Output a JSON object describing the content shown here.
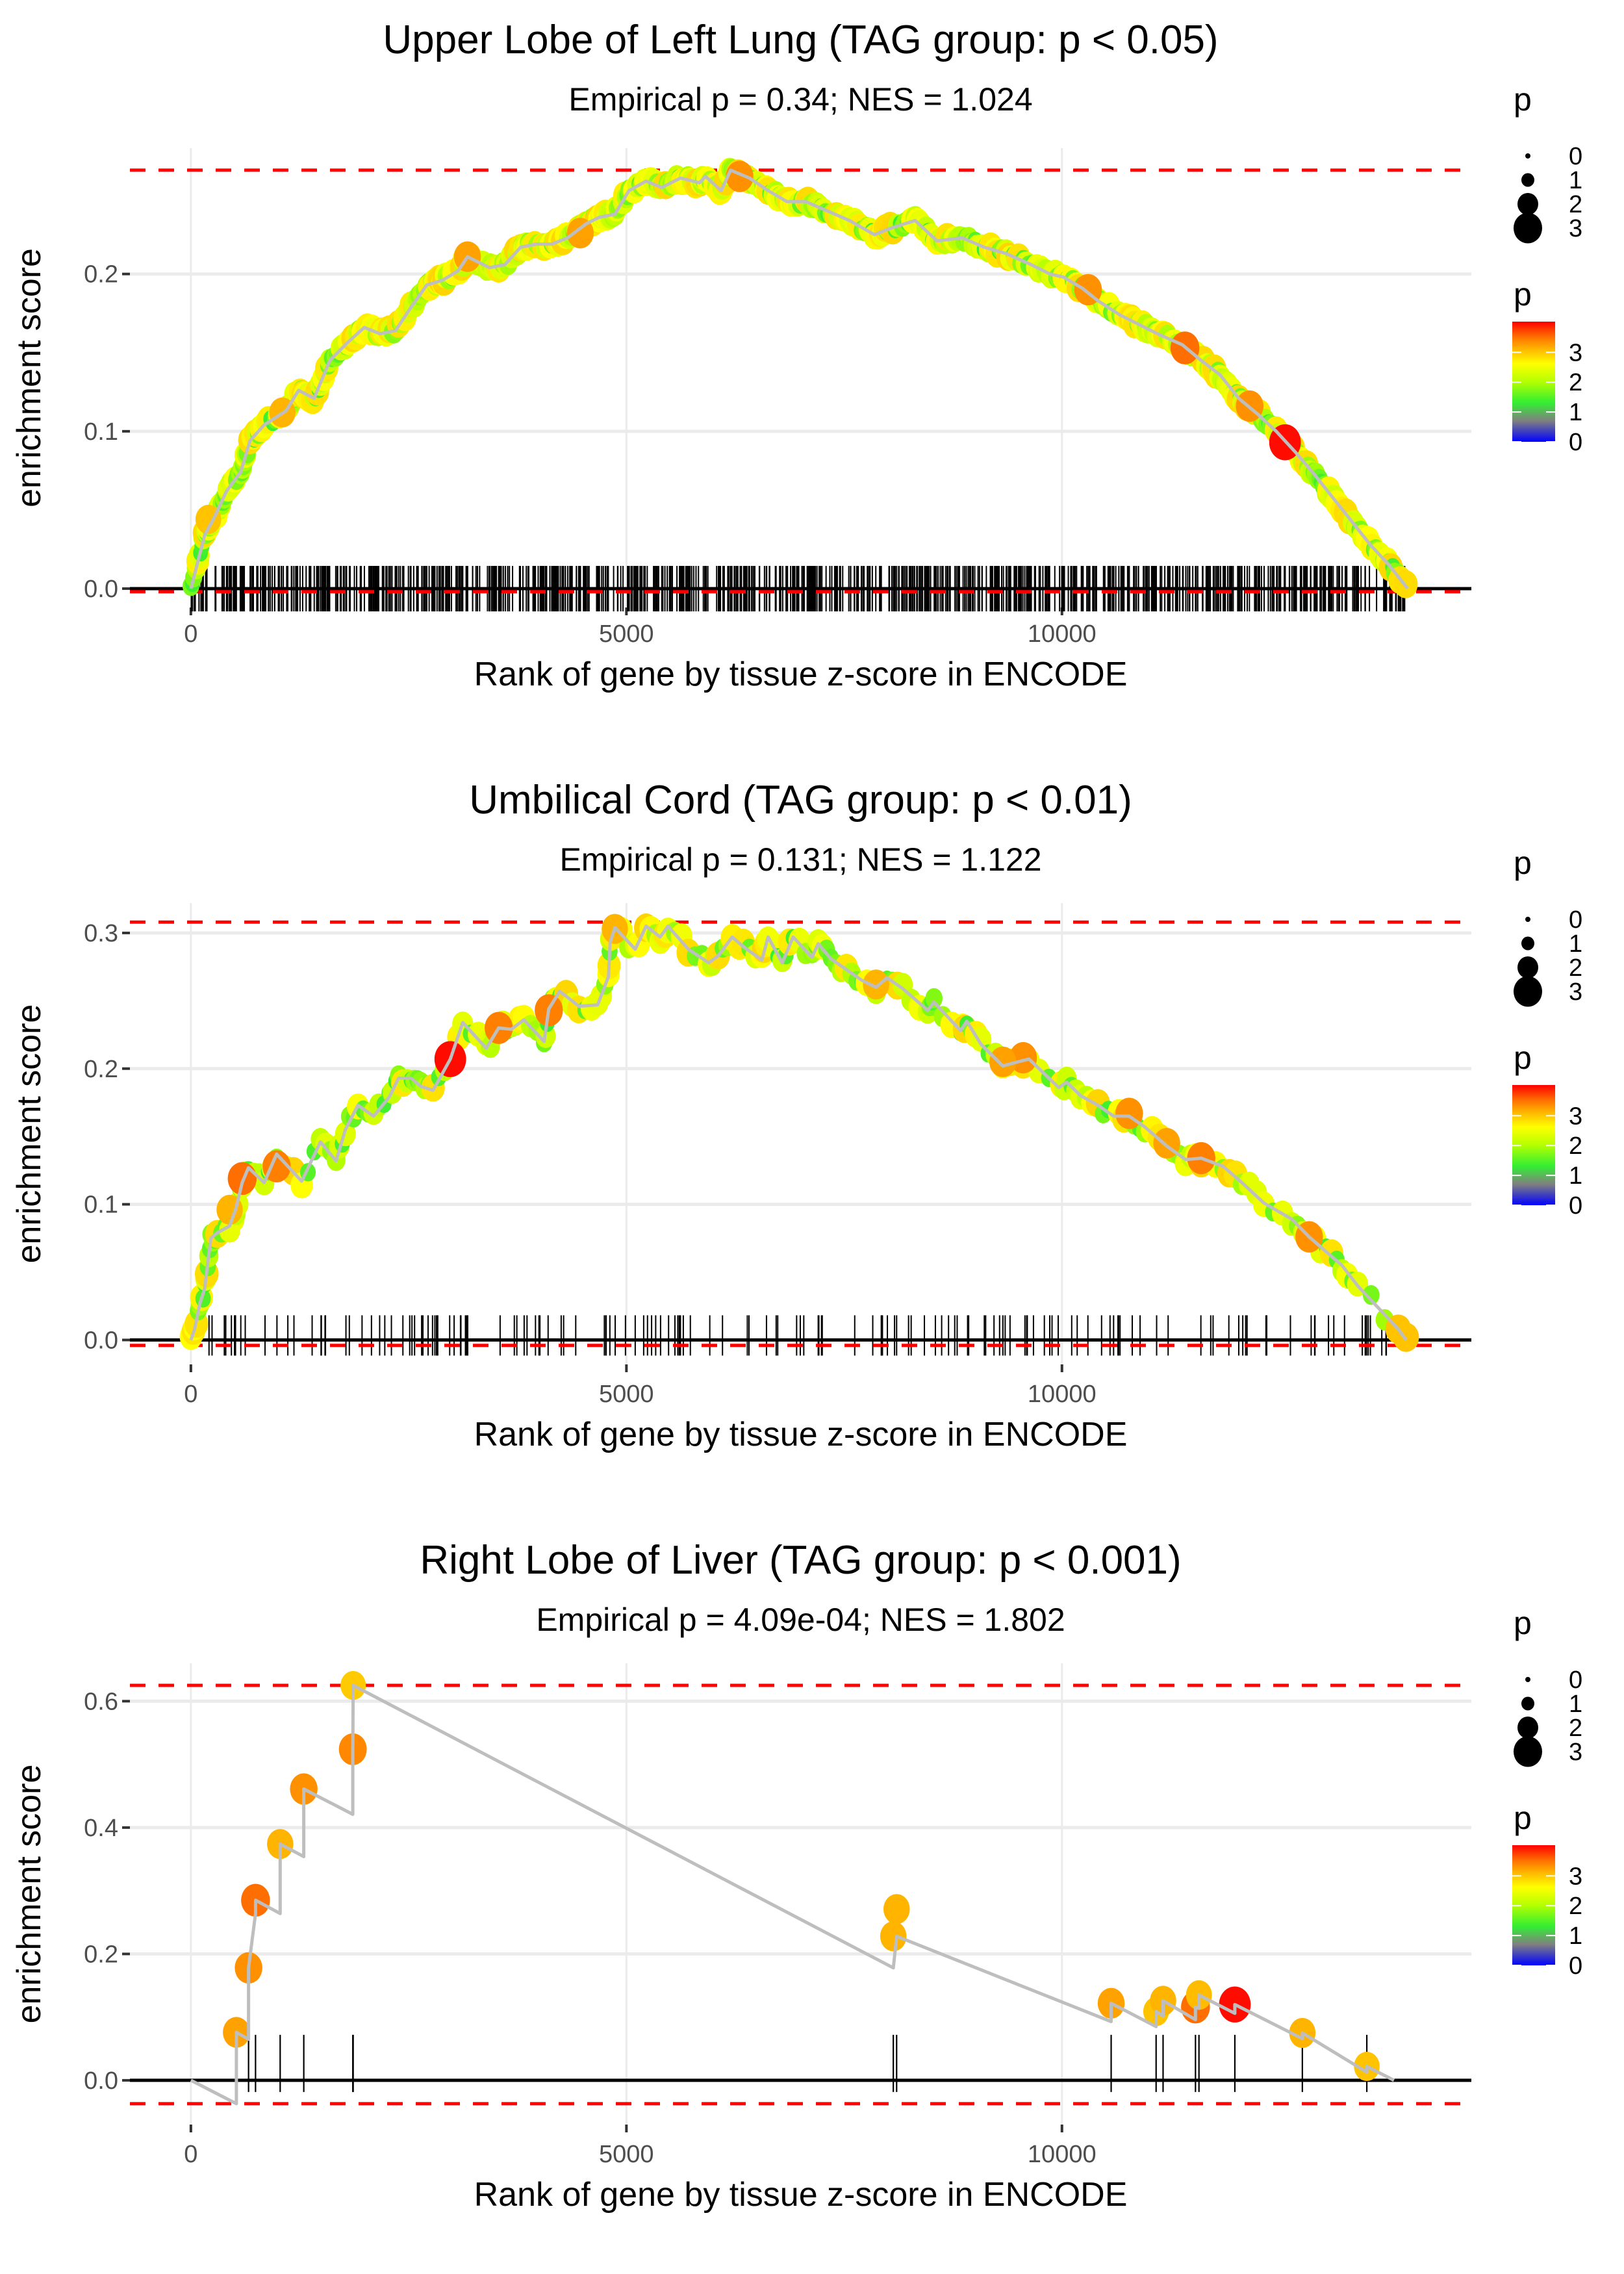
{
  "figure": {
    "n_panels": 3
  },
  "chart_data": [
    {
      "type": "line",
      "title": "Upper Lobe of Left Lung (TAG group: p < 0.05)",
      "subtitle": "Empirical p = 0.34; NES = 1.024",
      "xlabel": "Rank of gene by tissue z-score in ENCODE",
      "ylabel": "enrichment score",
      "xlim": [
        -700,
        14700
      ],
      "ylim": [
        -0.012,
        0.28
      ],
      "xticks": [
        0,
        5000,
        10000
      ],
      "xtick_labels": [
        "0",
        "5000",
        "10000"
      ],
      "yticks": [
        0.0,
        0.1,
        0.2
      ],
      "ytick_labels": [
        "0.0",
        "0.1",
        "0.2"
      ],
      "grid": true,
      "n_genes": 13970,
      "max_es": 0.266,
      "min_es": -0.002,
      "dense_hits": true,
      "curve": {
        "x": [
          0,
          158,
          266,
          410,
          571,
          679,
          841,
          1092,
          1236,
          1415,
          1595,
          1810,
          1990,
          2170,
          2349,
          2529,
          2708,
          2888,
          3067,
          3175,
          3427,
          3606,
          3786,
          3966,
          4145,
          4325,
          4540,
          4687,
          4867,
          5029,
          5226,
          5406,
          5621,
          5837,
          5909,
          6088,
          6196,
          6412,
          6627,
          6843,
          7058,
          7310,
          7561,
          7848,
          8028,
          8315,
          8567,
          8854,
          9106,
          9357,
          9645,
          9860,
          10018,
          10233,
          10413,
          10665,
          10880,
          11096,
          11383,
          11599,
          11814,
          12029,
          12245,
          12460,
          12676,
          12892,
          13107,
          13323,
          13538,
          13754,
          13969
        ],
        "y": [
          0,
          0.034,
          0.045,
          0.062,
          0.074,
          0.094,
          0.104,
          0.113,
          0.126,
          0.121,
          0.145,
          0.157,
          0.166,
          0.162,
          0.164,
          0.179,
          0.193,
          0.196,
          0.202,
          0.211,
          0.204,
          0.206,
          0.217,
          0.219,
          0.219,
          0.223,
          0.232,
          0.236,
          0.238,
          0.253,
          0.259,
          0.255,
          0.261,
          0.258,
          0.262,
          0.253,
          0.266,
          0.261,
          0.253,
          0.246,
          0.246,
          0.24,
          0.234,
          0.225,
          0.229,
          0.234,
          0.221,
          0.223,
          0.217,
          0.213,
          0.206,
          0.2,
          0.198,
          0.191,
          0.183,
          0.174,
          0.168,
          0.162,
          0.155,
          0.145,
          0.136,
          0.121,
          0.111,
          0.1,
          0.087,
          0.073,
          0.058,
          0.043,
          0.028,
          0.015,
          0.0
        ]
      },
      "highlight_points": [
        {
          "x": 3175,
          "y": 0.211,
          "p": 3.2
        },
        {
          "x": 4470,
          "y": 0.226,
          "p": 3.2
        },
        {
          "x": 6300,
          "y": 0.262,
          "p": 3.3
        },
        {
          "x": 10300,
          "y": 0.19,
          "p": 3.3
        },
        {
          "x": 11412,
          "y": 0.153,
          "p": 3.5
        },
        {
          "x": 12155,
          "y": 0.116,
          "p": 3.3
        },
        {
          "x": 12561,
          "y": 0.093,
          "p": 3.95
        },
        {
          "x": 1050,
          "y": 0.112,
          "p": 3.1
        },
        {
          "x": 200,
          "y": 0.044,
          "p": 3.0
        }
      ],
      "legend": {
        "size_title": "p",
        "size_labels": [
          "0",
          "1",
          "2",
          "3"
        ],
        "color_title": "p",
        "color_labels": [
          "0",
          "1",
          "2",
          "3"
        ],
        "placement": "right"
      }
    },
    {
      "type": "line",
      "title": "Umbilical Cord (TAG group: p < 0.01)",
      "subtitle": "Empirical p = 0.131; NES = 1.122",
      "xlabel": "Rank of gene by tissue z-score in ENCODE",
      "ylabel": "enrichment score",
      "xlim": [
        -700,
        14700
      ],
      "ylim": [
        -0.018,
        0.322
      ],
      "xticks": [
        0,
        5000,
        10000
      ],
      "xtick_labels": [
        "0",
        "5000",
        "10000"
      ],
      "yticks": [
        0.0,
        0.1,
        0.2,
        0.3
      ],
      "ytick_labels": [
        "0.0",
        "0.1",
        "0.2",
        "0.3"
      ],
      "grid": true,
      "n_genes": 13951,
      "max_es": 0.308,
      "min_es": -0.004,
      "dense_hits": false,
      "curve": {
        "x": [
          0,
          43,
          104,
          158,
          194,
          230,
          302,
          445,
          517,
          589,
          661,
          841,
          984,
          1272,
          1487,
          1667,
          1774,
          1918,
          2098,
          2277,
          2385,
          2529,
          2637,
          2780,
          2978,
          3121,
          3391,
          3534,
          3678,
          3822,
          4055,
          4109,
          4235,
          4454,
          4670,
          4795,
          4813,
          4867,
          5101,
          5226,
          5388,
          5478,
          5711,
          5945,
          6052,
          6214,
          6340,
          6555,
          6627,
          6789,
          6914,
          7130,
          7202,
          7346,
          7525,
          7705,
          7866,
          7992,
          8172,
          8459,
          8531,
          8836,
          8908,
          9070,
          9321,
          9555,
          9623,
          9964,
          10054,
          10216,
          10413,
          10593,
          10772,
          10952,
          11203,
          11419,
          11599,
          11850,
          12066,
          12317,
          12640,
          12838,
          13035,
          13215,
          13394,
          13861,
          13951
        ],
        "y": [
          0,
          0.008,
          0.027,
          0.038,
          0.057,
          0.075,
          0.079,
          0.084,
          0.097,
          0.116,
          0.127,
          0.116,
          0.137,
          0.117,
          0.146,
          0.132,
          0.155,
          0.173,
          0.165,
          0.179,
          0.193,
          0.193,
          0.187,
          0.184,
          0.207,
          0.234,
          0.215,
          0.23,
          0.229,
          0.236,
          0.22,
          0.244,
          0.257,
          0.246,
          0.247,
          0.268,
          0.293,
          0.304,
          0.288,
          0.305,
          0.297,
          0.305,
          0.288,
          0.278,
          0.283,
          0.297,
          0.29,
          0.28,
          0.297,
          0.278,
          0.297,
          0.282,
          0.292,
          0.281,
          0.273,
          0.265,
          0.26,
          0.267,
          0.259,
          0.243,
          0.249,
          0.228,
          0.235,
          0.218,
          0.202,
          0.206,
          0.207,
          0.186,
          0.19,
          0.18,
          0.173,
          0.165,
          0.165,
          0.157,
          0.143,
          0.133,
          0.134,
          0.128,
          0.116,
          0.101,
          0.089,
          0.076,
          0.065,
          0.055,
          0.04,
          0.008,
          0.0
        ]
      },
      "highlight_points": [
        {
          "x": 445,
          "y": 0.096,
          "p": 3.1
        },
        {
          "x": 589,
          "y": 0.119,
          "p": 3.5
        },
        {
          "x": 984,
          "y": 0.128,
          "p": 3.4
        },
        {
          "x": 2978,
          "y": 0.207,
          "p": 3.95
        },
        {
          "x": 3534,
          "y": 0.23,
          "p": 3.4
        },
        {
          "x": 4109,
          "y": 0.243,
          "p": 3.4
        },
        {
          "x": 4867,
          "y": 0.303,
          "p": 3.1
        },
        {
          "x": 7866,
          "y": 0.262,
          "p": 3.1
        },
        {
          "x": 9555,
          "y": 0.208,
          "p": 3.3
        },
        {
          "x": 9321,
          "y": 0.205,
          "p": 3.2
        },
        {
          "x": 10772,
          "y": 0.167,
          "p": 3.3
        },
        {
          "x": 11203,
          "y": 0.145,
          "p": 3.2
        },
        {
          "x": 11599,
          "y": 0.134,
          "p": 3.4
        },
        {
          "x": 12838,
          "y": 0.076,
          "p": 3.3
        },
        {
          "x": 13861,
          "y": 0.008,
          "p": 3.0
        },
        {
          "x": 13951,
          "y": 0.002,
          "p": 3.0
        }
      ],
      "legend": {
        "size_title": "p",
        "size_labels": [
          "0",
          "1",
          "2",
          "3"
        ],
        "color_title": "p",
        "color_labels": [
          "0",
          "1",
          "2",
          "3"
        ],
        "placement": "right"
      }
    },
    {
      "type": "line",
      "title": "Right Lobe of Liver (TAG group: p < 0.001)",
      "subtitle": "Empirical p = 4.09e-04; NES = 1.802",
      "xlabel": "Rank of gene by tissue z-score in ENCODE",
      "ylabel": "enrichment score",
      "xlim": [
        -700,
        14700
      ],
      "ylim": [
        -0.07,
        0.66
      ],
      "xticks": [
        0,
        5000,
        10000
      ],
      "xtick_labels": [
        "0",
        "5000",
        "10000"
      ],
      "yticks": [
        0.0,
        0.2,
        0.4,
        0.6
      ],
      "ytick_labels": [
        "0.0",
        "0.2",
        "0.4",
        "0.6"
      ],
      "grid": true,
      "n_genes": 13812,
      "max_es": 0.625,
      "min_es": -0.037,
      "dense_hits": false,
      "curve": {
        "x": [
          0,
          522,
          522,
          662,
          662,
          742,
          742,
          1025,
          1025,
          1296,
          1296,
          1859,
          1859,
          1863,
          8064,
          8064,
          8102,
          8102,
          10565,
          10565,
          11081,
          11081,
          11161,
          11161,
          11533,
          11533,
          11573,
          11573,
          11985,
          11985,
          12760,
          12760,
          13500,
          13500,
          13812
        ],
        "y": [
          0,
          -0.037,
          0.076,
          0.065,
          0.178,
          0.264,
          0.285,
          0.264,
          0.374,
          0.354,
          0.461,
          0.421,
          0.524,
          0.625,
          0.178,
          0.178,
          0.228,
          0.228,
          0.093,
          0.122,
          0.085,
          0.109,
          0.102,
          0.126,
          0.096,
          0.116,
          0.114,
          0.135,
          0.106,
          0.12,
          0.066,
          0.075,
          0.013,
          0.022,
          0.0
        ]
      },
      "highlight_points": [
        {
          "x": 522,
          "y": 0.076,
          "p": 3.2
        },
        {
          "x": 662,
          "y": 0.178,
          "p": 3.3
        },
        {
          "x": 742,
          "y": 0.285,
          "p": 3.5
        },
        {
          "x": 1025,
          "y": 0.374,
          "p": 3.1
        },
        {
          "x": 1296,
          "y": 0.461,
          "p": 3.3
        },
        {
          "x": 1859,
          "y": 0.524,
          "p": 3.35
        },
        {
          "x": 1863,
          "y": 0.625,
          "p": 2.95
        },
        {
          "x": 8064,
          "y": 0.228,
          "p": 3.1
        },
        {
          "x": 8102,
          "y": 0.271,
          "p": 3.1
        },
        {
          "x": 10565,
          "y": 0.122,
          "p": 3.2
        },
        {
          "x": 11081,
          "y": 0.109,
          "p": 3.0
        },
        {
          "x": 11161,
          "y": 0.126,
          "p": 3.1
        },
        {
          "x": 11533,
          "y": 0.116,
          "p": 3.5
        },
        {
          "x": 11573,
          "y": 0.135,
          "p": 3.05
        },
        {
          "x": 11985,
          "y": 0.12,
          "p": 3.95
        },
        {
          "x": 12760,
          "y": 0.075,
          "p": 3.1
        },
        {
          "x": 13500,
          "y": 0.022,
          "p": 3.0
        }
      ],
      "hit_ranks": [
        522,
        662,
        742,
        1025,
        1296,
        1859,
        1863,
        8064,
        8102,
        10565,
        11081,
        11161,
        11533,
        11573,
        11985,
        12760,
        13500
      ],
      "legend": {
        "size_title": "p",
        "size_labels": [
          "0",
          "1",
          "2",
          "3"
        ],
        "color_title": "p",
        "color_labels": [
          "0",
          "1",
          "2",
          "3"
        ],
        "placement": "right"
      }
    }
  ],
  "colors": {
    "max_line": "#ff0000",
    "curve": "#bebebe",
    "zero_line": "#000000",
    "grid": "#ebebeb",
    "colorscale": [
      "#0000ff",
      "#8a8a8a",
      "#33ee33",
      "#ccff00",
      "#ffff00",
      "#ffaa00",
      "#ff6a00",
      "#ff0000"
    ]
  }
}
